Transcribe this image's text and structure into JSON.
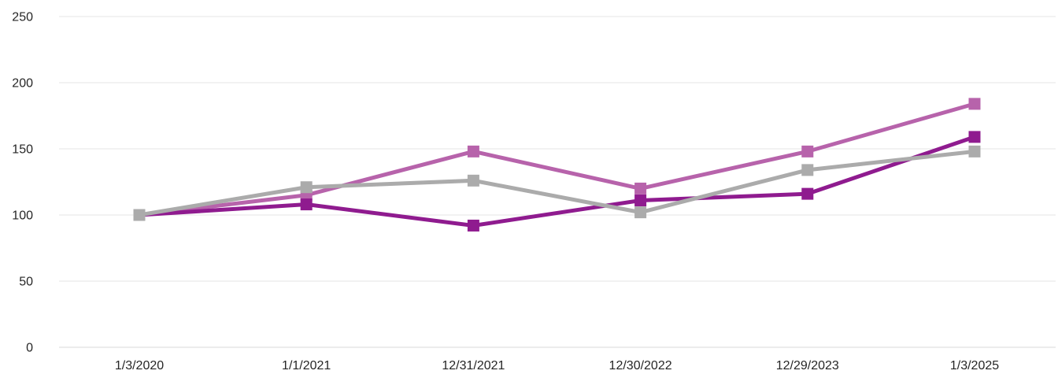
{
  "chart_data": {
    "type": "line",
    "title": "",
    "xlabel": "",
    "ylabel": "",
    "categories": [
      "1/3/2020",
      "1/1/2021",
      "12/31/2021",
      "12/30/2022",
      "12/29/2023",
      "1/3/2025"
    ],
    "series": [
      {
        "name": "light-purple-series",
        "color": "#b763ab",
        "values": [
          100,
          115,
          148,
          120,
          148,
          184
        ]
      },
      {
        "name": "dark-purple-series",
        "color": "#8f1b8f",
        "values": [
          100,
          108,
          92,
          111,
          116,
          159
        ]
      },
      {
        "name": "gray-series",
        "color": "#ababab",
        "values": [
          100,
          121,
          126,
          102,
          134,
          148
        ]
      }
    ],
    "ylim": [
      0,
      250
    ],
    "yticks": [
      0,
      50,
      100,
      150,
      200,
      250
    ],
    "grid": true,
    "legend": "none",
    "marker": "square",
    "grid_color": "#e6e6e6",
    "axis_line_color": "#d9d9d9",
    "tick_label_color": "#262626"
  }
}
